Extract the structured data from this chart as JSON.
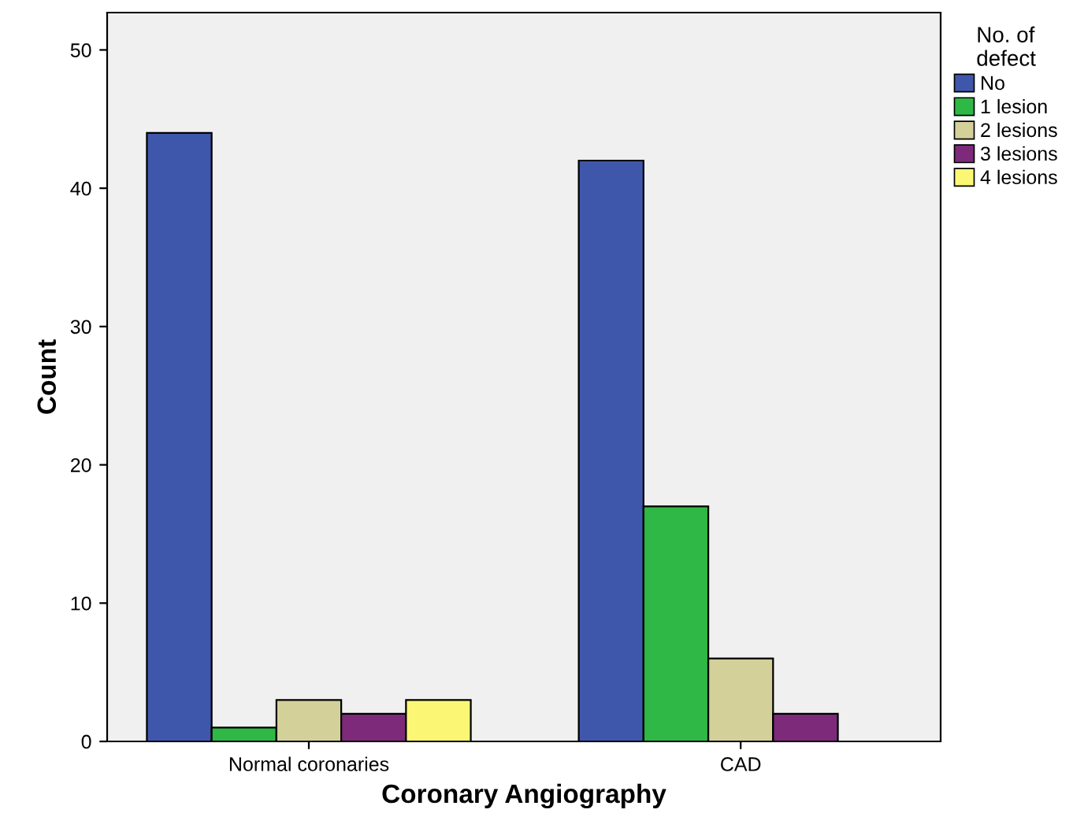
{
  "chart_data": {
    "type": "bar",
    "xlabel": "Coronary Angiography",
    "ylabel": "Count",
    "legend_title": "No. of\ndefect",
    "categories": [
      "Normal coronaries",
      "CAD"
    ],
    "series": [
      {
        "name": "No",
        "color": "#3f57ab",
        "values": [
          44,
          42
        ]
      },
      {
        "name": "1 lesion",
        "color": "#2fb845",
        "values": [
          1,
          17
        ]
      },
      {
        "name": "2 lesions",
        "color": "#d4d09a",
        "values": [
          3,
          6
        ]
      },
      {
        "name": "3 lesions",
        "color": "#7d2a7a",
        "values": [
          2,
          2
        ]
      },
      {
        "name": "4 lesions",
        "color": "#fbf774",
        "values": [
          3,
          null
        ]
      }
    ],
    "ylim": [
      0,
      52.7
    ],
    "yticks": [
      0,
      10,
      20,
      30,
      40,
      50
    ],
    "grid": false,
    "legend": "top right"
  }
}
